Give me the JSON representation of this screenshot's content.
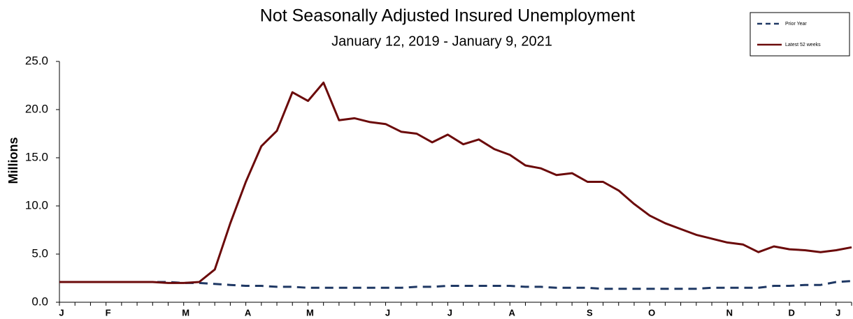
{
  "chart_data": {
    "type": "line",
    "title": "Not Seasonally Adjusted Insured Unemployment",
    "subtitle": "January 12, 2019 - January 9, 2021",
    "y_label": "Millions",
    "categories": [
      "J",
      null,
      null,
      "F",
      null,
      null,
      null,
      null,
      "M",
      null,
      null,
      null,
      "A",
      null,
      null,
      null,
      "M",
      null,
      null,
      null,
      null,
      "J",
      null,
      null,
      null,
      "J",
      null,
      null,
      null,
      "A",
      null,
      null,
      null,
      null,
      "S",
      null,
      null,
      null,
      "O",
      null,
      null,
      null,
      null,
      "N",
      null,
      null,
      null,
      "D",
      null,
      null,
      "J",
      null
    ],
    "series": [
      {
        "name": "Prior Year",
        "color": "#1f3864",
        "dash": true,
        "values": [
          2.1,
          2.1,
          2.1,
          2.1,
          2.1,
          2.1,
          2.1,
          2.1,
          2.0,
          2.0,
          1.9,
          1.8,
          1.7,
          1.7,
          1.6,
          1.6,
          1.5,
          1.5,
          1.5,
          1.5,
          1.5,
          1.5,
          1.5,
          1.6,
          1.6,
          1.7,
          1.7,
          1.7,
          1.7,
          1.7,
          1.6,
          1.6,
          1.5,
          1.5,
          1.5,
          1.4,
          1.4,
          1.4,
          1.4,
          1.4,
          1.4,
          1.4,
          1.5,
          1.5,
          1.5,
          1.5,
          1.7,
          1.7,
          1.8,
          1.8,
          2.1,
          2.2
        ]
      },
      {
        "name": "Latest 52 weeks",
        "color": "#6b0a0a",
        "dash": false,
        "values": [
          2.1,
          2.1,
          2.1,
          2.1,
          2.1,
          2.1,
          2.1,
          2.0,
          2.0,
          2.1,
          3.4,
          8.2,
          12.5,
          16.2,
          17.8,
          21.8,
          20.9,
          22.8,
          18.9,
          19.1,
          18.7,
          18.5,
          17.7,
          17.5,
          16.6,
          17.4,
          16.4,
          16.9,
          15.9,
          15.3,
          14.2,
          13.9,
          13.2,
          13.4,
          12.5,
          12.5,
          11.6,
          10.2,
          9.0,
          8.2,
          7.6,
          7.0,
          6.6,
          6.2,
          6.0,
          5.2,
          5.8,
          5.5,
          5.4,
          5.2,
          5.4,
          5.7
        ]
      }
    ],
    "ylim": [
      0,
      25
    ],
    "yticks": [
      {
        "value": 0,
        "label": "0.0"
      },
      {
        "value": 5,
        "label": "5.0"
      },
      {
        "value": 10,
        "label": "10.0"
      },
      {
        "value": 15,
        "label": "15.0"
      },
      {
        "value": 20,
        "label": "20.0"
      },
      {
        "value": 25,
        "label": "25.0"
      }
    ],
    "grid": false,
    "legend": "top-right"
  }
}
